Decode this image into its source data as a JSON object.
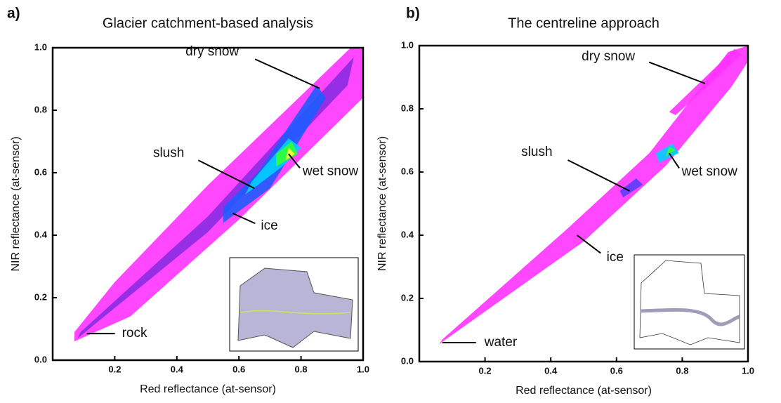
{
  "chart_data": [
    {
      "type": "density-scatter",
      "panel_label": "a)",
      "title": "Glacier catchment-based analysis",
      "x_label": "Red reflectance (at-sensor)",
      "y_label": "NIR reflectance (at-sensor)",
      "xlim": [
        0,
        1
      ],
      "ylim": [
        0,
        1
      ],
      "xticks": [
        0.2,
        0.4,
        0.6,
        0.8,
        {
          "value": 1,
          "label": "1.0"
        }
      ],
      "yticks": [
        {
          "value": 0,
          "label": "0.0"
        },
        0.2,
        0.4,
        0.6,
        0.8,
        {
          "value": 1,
          "label": "1.0"
        }
      ],
      "annotations": [
        {
          "text": "dry snow",
          "x": 0.86,
          "y": 0.87
        },
        {
          "text": "slush",
          "x": 0.65,
          "y": 0.55
        },
        {
          "text": "wet snow",
          "x": 0.76,
          "y": 0.66
        },
        {
          "text": "ice",
          "x": 0.58,
          "y": 0.47
        },
        {
          "text": "rock",
          "x": 0.11,
          "y": 0.085
        }
      ]
    },
    {
      "type": "density-scatter",
      "panel_label": "b)",
      "title": "The centreline approach",
      "x_label": "Red  reflectance (at-sensor)",
      "y_label": "NIR reflectance (at-sensor)",
      "xlim": [
        0,
        1
      ],
      "ylim": [
        0,
        1
      ],
      "xticks": [
        0.2,
        0.4,
        0.6,
        0.8,
        {
          "value": 1,
          "label": "1.0"
        }
      ],
      "yticks": [
        {
          "value": 0,
          "label": "0.0"
        },
        0.2,
        0.4,
        0.6,
        0.8,
        {
          "value": 1,
          "label": "1.0"
        }
      ],
      "annotations": [
        {
          "text": "dry snow",
          "x": 0.87,
          "y": 0.88
        },
        {
          "text": "slush",
          "x": 0.64,
          "y": 0.54
        },
        {
          "text": "wet snow",
          "x": 0.76,
          "y": 0.66
        },
        {
          "text": "ice",
          "x": 0.48,
          "y": 0.4
        },
        {
          "text": "water",
          "x": 0.07,
          "y": 0.06
        }
      ]
    }
  ]
}
